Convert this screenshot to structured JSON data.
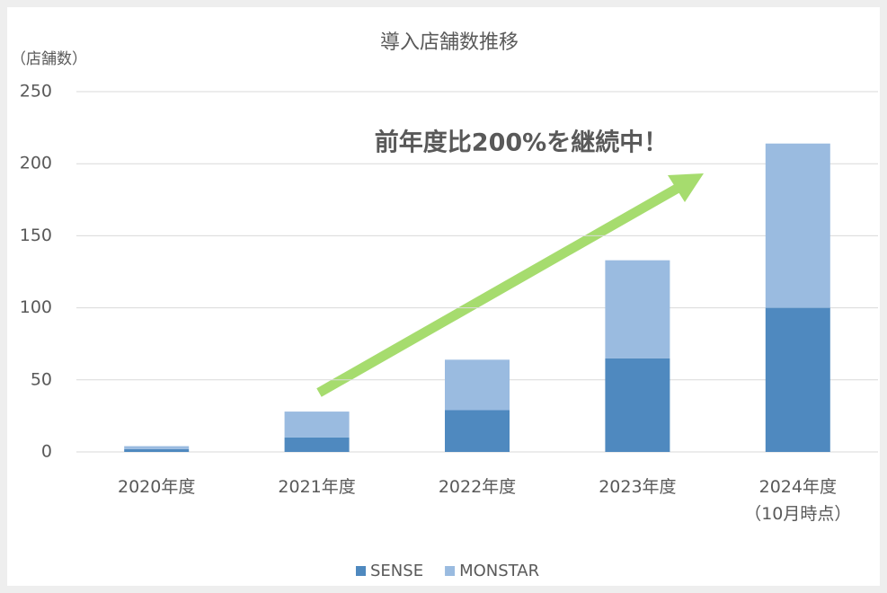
{
  "chart_data": {
    "type": "stacked_bar",
    "title": "導入店舗数推移",
    "y_label": "（店舗数）",
    "annotation": "前年度比200%を継続中！",
    "categories": [
      "2020年度",
      "2021年度",
      "2022年度",
      "2023年度",
      "2024年度\n（10月時点）"
    ],
    "series": [
      {
        "name": "SENSE",
        "color": "#4f89bf",
        "values": [
          2,
          10,
          29,
          65,
          100
        ]
      },
      {
        "name": "MONSTAR",
        "color": "#9abbe0",
        "values": [
          2,
          18,
          35,
          68,
          114
        ]
      }
    ],
    "ylim": [
      0,
      250
    ],
    "yticks": [
      0,
      50,
      100,
      150,
      200,
      250
    ],
    "grid": true,
    "legend": "bottom"
  }
}
